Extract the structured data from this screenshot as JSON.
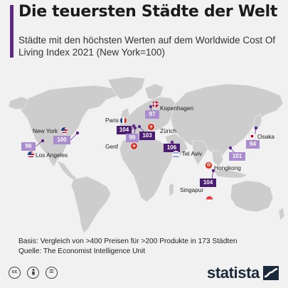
{
  "title": "Die teuersten Städte der Welt",
  "subtitle": "Städte mit den höchsten Werten auf dem Worldwide Cost Of Living Index 2021 (New York=100)",
  "chart_data": {
    "type": "map",
    "categories": [
      "Paris",
      "Zürich",
      "Hongkong",
      "Singapur",
      "Tel Aviv",
      "Osaka",
      "Genf",
      "Kopenhagen",
      "Los Angeles",
      "New York"
    ],
    "values": [
      104,
      103,
      101,
      104,
      106,
      94,
      99,
      97,
      96,
      100
    ],
    "marker_colors": {
      "dark": "#4a1c72",
      "light": "#a98dcf"
    }
  },
  "cities": [
    {
      "name": "New York",
      "value": "100",
      "flag": "us"
    },
    {
      "name": "Los Angeles",
      "value": "96",
      "flag": "us"
    },
    {
      "name": "Paris",
      "value": "104",
      "flag": "fr"
    },
    {
      "name": "Genf",
      "value": "99",
      "flag": "ch"
    },
    {
      "name": "Zürich",
      "value": "103",
      "flag": "ch"
    },
    {
      "name": "Kopenhagen",
      "value": "97",
      "flag": "dk"
    },
    {
      "name": "Tel Aviv",
      "value": "106",
      "flag": "il"
    },
    {
      "name": "Singapur",
      "value": "104",
      "flag": "sg"
    },
    {
      "name": "Hongkong",
      "value": "101",
      "flag": "hk"
    },
    {
      "name": "Osaka",
      "value": "94",
      "flag": "jp"
    }
  ],
  "notes": {
    "basis": "Basis: Vergleich von >400 Preisen für >200 Produkte in 173 Städten",
    "source": "Quelle: The Economist Intelligence Unit"
  },
  "footer": {
    "brand": "statista",
    "license_icons": [
      "cc",
      "by",
      "nd"
    ]
  }
}
